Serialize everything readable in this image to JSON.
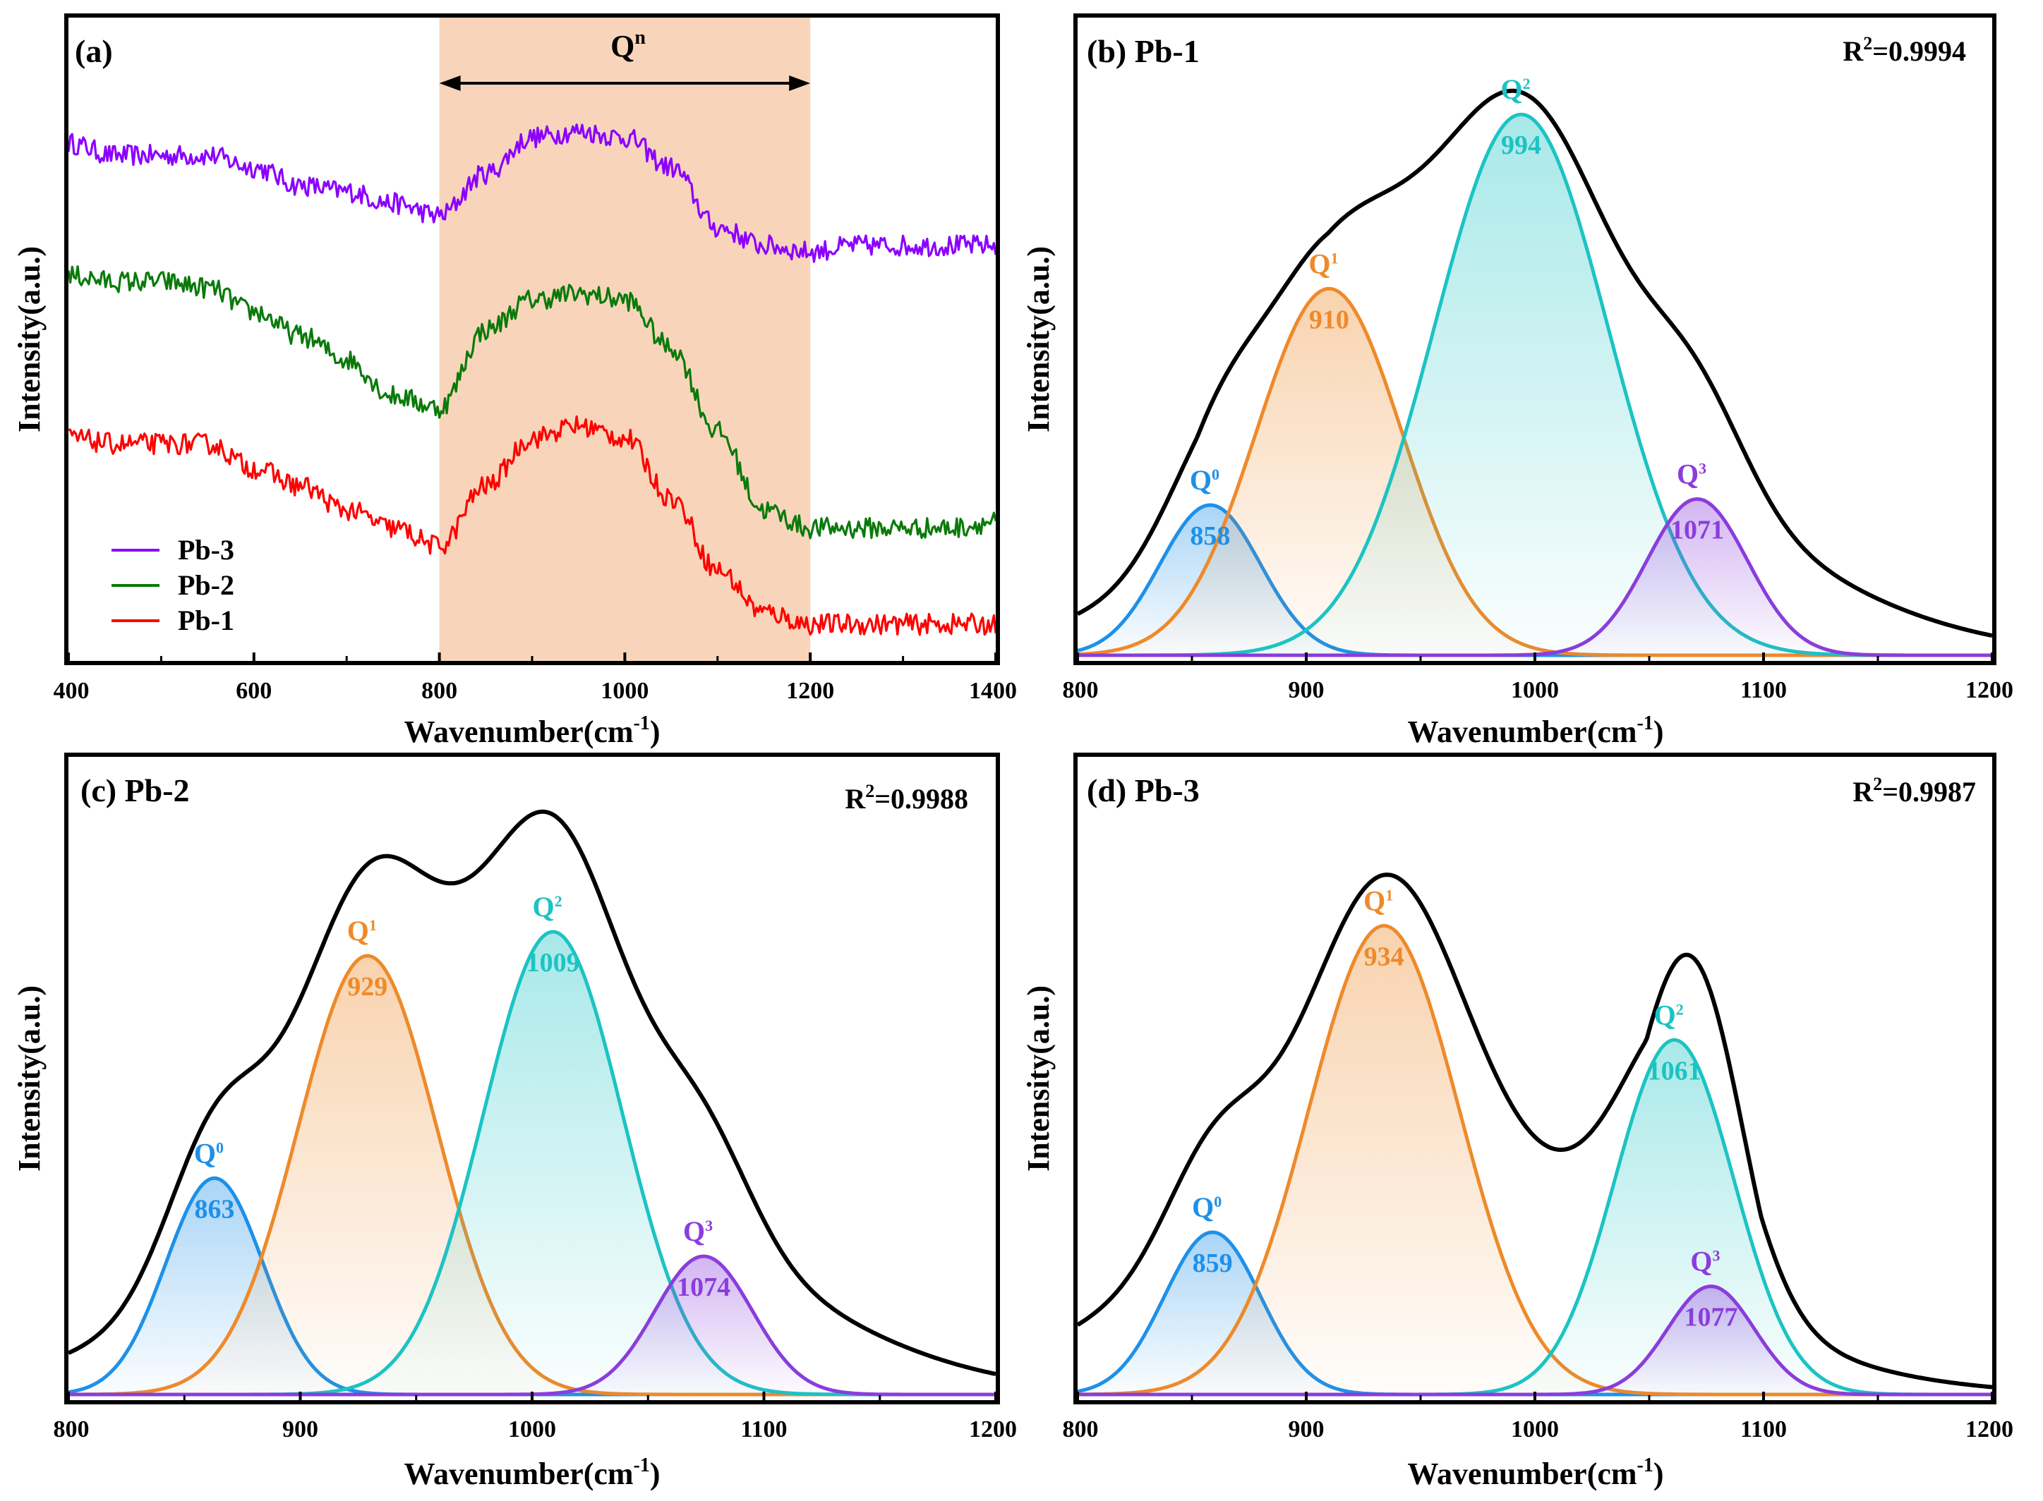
{
  "figure": {
    "panels": [
      {
        "id": "a",
        "panel_label": "(a)",
        "xlabel": "Wavenumber(cm",
        "xlabel_sup": "-1",
        "xlabel_tail": ")",
        "ylabel": "Intensity(a.u.)",
        "region_label": "Q",
        "region_label_sup": "n",
        "xlim": [
          400,
          1400
        ],
        "xticks": [
          400,
          600,
          800,
          1000,
          1200,
          1400
        ],
        "region": [
          800,
          1200
        ],
        "region_color": "#f8d5ba",
        "legend": [
          {
            "label": "Pb-3",
            "color": "#8b00ff"
          },
          {
            "label": "Pb-2",
            "color": "#0a7a0a"
          },
          {
            "label": "Pb-1",
            "color": "#ff0000"
          }
        ]
      },
      {
        "id": "b",
        "panel_label": "(b) Pb-1",
        "r2_label": "R",
        "r2_sup": "2",
        "r2_value": "=0.9994",
        "xlabel": "Wavenumber(cm",
        "xlabel_sup": "-1",
        "xlabel_tail": ")",
        "ylabel": "Intensity(a.u.)",
        "xlim": [
          800,
          1200
        ],
        "xticks": [
          800,
          900,
          1000,
          1100,
          1200
        ],
        "peaks": [
          {
            "label": "Q",
            "sup": "0",
            "value": "858"
          },
          {
            "label": "Q",
            "sup": "1",
            "value": "910"
          },
          {
            "label": "Q",
            "sup": "2",
            "value": "994"
          },
          {
            "label": "Q",
            "sup": "3",
            "value": "1071"
          }
        ]
      },
      {
        "id": "c",
        "panel_label": "(c) Pb-2",
        "r2_label": "R",
        "r2_sup": "2",
        "r2_value": "=0.9988",
        "xlabel": "Wavenumber(cm",
        "xlabel_sup": "-1",
        "xlabel_tail": ")",
        "ylabel": "Intensity(a.u.)",
        "xlim": [
          800,
          1200
        ],
        "xticks": [
          800,
          900,
          1000,
          1100,
          1200
        ],
        "peaks": [
          {
            "label": "Q",
            "sup": "0",
            "value": "863"
          },
          {
            "label": "Q",
            "sup": "1",
            "value": "929"
          },
          {
            "label": "Q",
            "sup": "2",
            "value": "1009"
          },
          {
            "label": "Q",
            "sup": "3",
            "value": "1074"
          }
        ]
      },
      {
        "id": "d",
        "panel_label": "(d) Pb-3",
        "r2_label": "R",
        "r2_sup": "2",
        "r2_value": "=0.9987",
        "xlabel": "Wavenumber(cm",
        "xlabel_sup": "-1",
        "xlabel_tail": ")",
        "ylabel": "Intensity(a.u.)",
        "xlim": [
          800,
          1200
        ],
        "xticks": [
          800,
          900,
          1000,
          1100,
          1200
        ],
        "peaks": [
          {
            "label": "Q",
            "sup": "0",
            "value": "859"
          },
          {
            "label": "Q",
            "sup": "1",
            "value": "934"
          },
          {
            "label": "Q",
            "sup": "2",
            "value": "1061"
          },
          {
            "label": "Q",
            "sup": "3",
            "value": "1077"
          }
        ]
      }
    ],
    "peak_colors": [
      "#1e90e8",
      "#ee8a2a",
      "#1cc3c3",
      "#8a3ddc"
    ],
    "envelope_color": "#000000"
  },
  "chart_data": [
    {
      "type": "line",
      "panel": "a",
      "xlabel": "Wavenumber(cm-1)",
      "ylabel": "Intensity(a.u.)",
      "xlim": [
        400,
        1400
      ],
      "yticks_shown": false,
      "series": [
        {
          "name": "Pb-3",
          "color": "#8b00ff",
          "x": [
            400,
            450,
            500,
            550,
            600,
            650,
            700,
            750,
            800,
            850,
            900,
            950,
            1000,
            1050,
            1100,
            1150,
            1200,
            1250,
            1300,
            1350,
            1400
          ],
          "y": [
            0.84,
            0.82,
            0.82,
            0.82,
            0.8,
            0.77,
            0.76,
            0.74,
            0.72,
            0.79,
            0.85,
            0.86,
            0.85,
            0.8,
            0.7,
            0.67,
            0.66,
            0.67,
            0.67,
            0.67,
            0.67
          ]
        },
        {
          "name": "Pb-2",
          "color": "#0a7a0a",
          "x": [
            400,
            450,
            500,
            550,
            600,
            650,
            700,
            750,
            800,
            850,
            900,
            950,
            1000,
            1050,
            1100,
            1150,
            1200,
            1250,
            1300,
            1350,
            1400
          ],
          "y": [
            0.62,
            0.61,
            0.61,
            0.6,
            0.56,
            0.52,
            0.48,
            0.42,
            0.4,
            0.53,
            0.58,
            0.59,
            0.58,
            0.5,
            0.36,
            0.23,
            0.2,
            0.2,
            0.2,
            0.2,
            0.21
          ]
        },
        {
          "name": "Pb-1",
          "color": "#ff0000",
          "x": [
            400,
            450,
            500,
            550,
            600,
            650,
            700,
            750,
            800,
            850,
            900,
            950,
            1000,
            1050,
            1100,
            1150,
            1200,
            1250,
            1300,
            1350,
            1400
          ],
          "y": [
            0.35,
            0.34,
            0.34,
            0.34,
            0.3,
            0.27,
            0.23,
            0.2,
            0.17,
            0.27,
            0.35,
            0.37,
            0.35,
            0.25,
            0.13,
            0.06,
            0.04,
            0.04,
            0.04,
            0.04,
            0.04
          ]
        }
      ]
    },
    {
      "type": "area",
      "panel": "b",
      "title": "(b) Pb-1",
      "annotation": "R2=0.9994",
      "xlabel": "Wavenumber(cm-1)",
      "ylabel": "Intensity(a.u.)",
      "xlim": [
        800,
        1200
      ],
      "yticks_shown": false,
      "envelope_peak": {
        "x": 985,
        "height": 0.94
      },
      "series": [
        {
          "name": "Q0",
          "center": 858,
          "height": 0.25,
          "sigma": 22
        },
        {
          "name": "Q1",
          "center": 910,
          "height": 0.61,
          "sigma": 32
        },
        {
          "name": "Q2",
          "center": 994,
          "height": 0.9,
          "sigma": 38
        },
        {
          "name": "Q3",
          "center": 1071,
          "height": 0.26,
          "sigma": 22
        }
      ]
    },
    {
      "type": "area",
      "panel": "c",
      "title": "(c) Pb-2",
      "annotation": "R2=0.9988",
      "xlabel": "Wavenumber(cm-1)",
      "ylabel": "Intensity(a.u.)",
      "xlim": [
        800,
        1200
      ],
      "yticks_shown": false,
      "envelope_peak": {
        "x": 985,
        "height": 0.98
      },
      "series": [
        {
          "name": "Q0",
          "center": 863,
          "height": 0.36,
          "sigma": 21
        },
        {
          "name": "Q1",
          "center": 929,
          "height": 0.73,
          "sigma": 30
        },
        {
          "name": "Q2",
          "center": 1009,
          "height": 0.77,
          "sigma": 30
        },
        {
          "name": "Q3",
          "center": 1074,
          "height": 0.23,
          "sigma": 21
        }
      ]
    },
    {
      "type": "area",
      "panel": "d",
      "title": "(d) Pb-3",
      "annotation": "R2=0.9987",
      "xlabel": "Wavenumber(cm-1)",
      "ylabel": "Intensity(a.u.)",
      "xlim": [
        800,
        1200
      ],
      "yticks_shown": false,
      "envelope_peak": {
        "x": 950,
        "height": 0.87
      },
      "series": [
        {
          "name": "Q0",
          "center": 859,
          "height": 0.27,
          "sigma": 21
        },
        {
          "name": "Q1",
          "center": 934,
          "height": 0.78,
          "sigma": 33
        },
        {
          "name": "Q2",
          "center": 1061,
          "height": 0.59,
          "sigma": 26
        },
        {
          "name": "Q3",
          "center": 1077,
          "height": 0.18,
          "sigma": 19
        }
      ]
    }
  ]
}
